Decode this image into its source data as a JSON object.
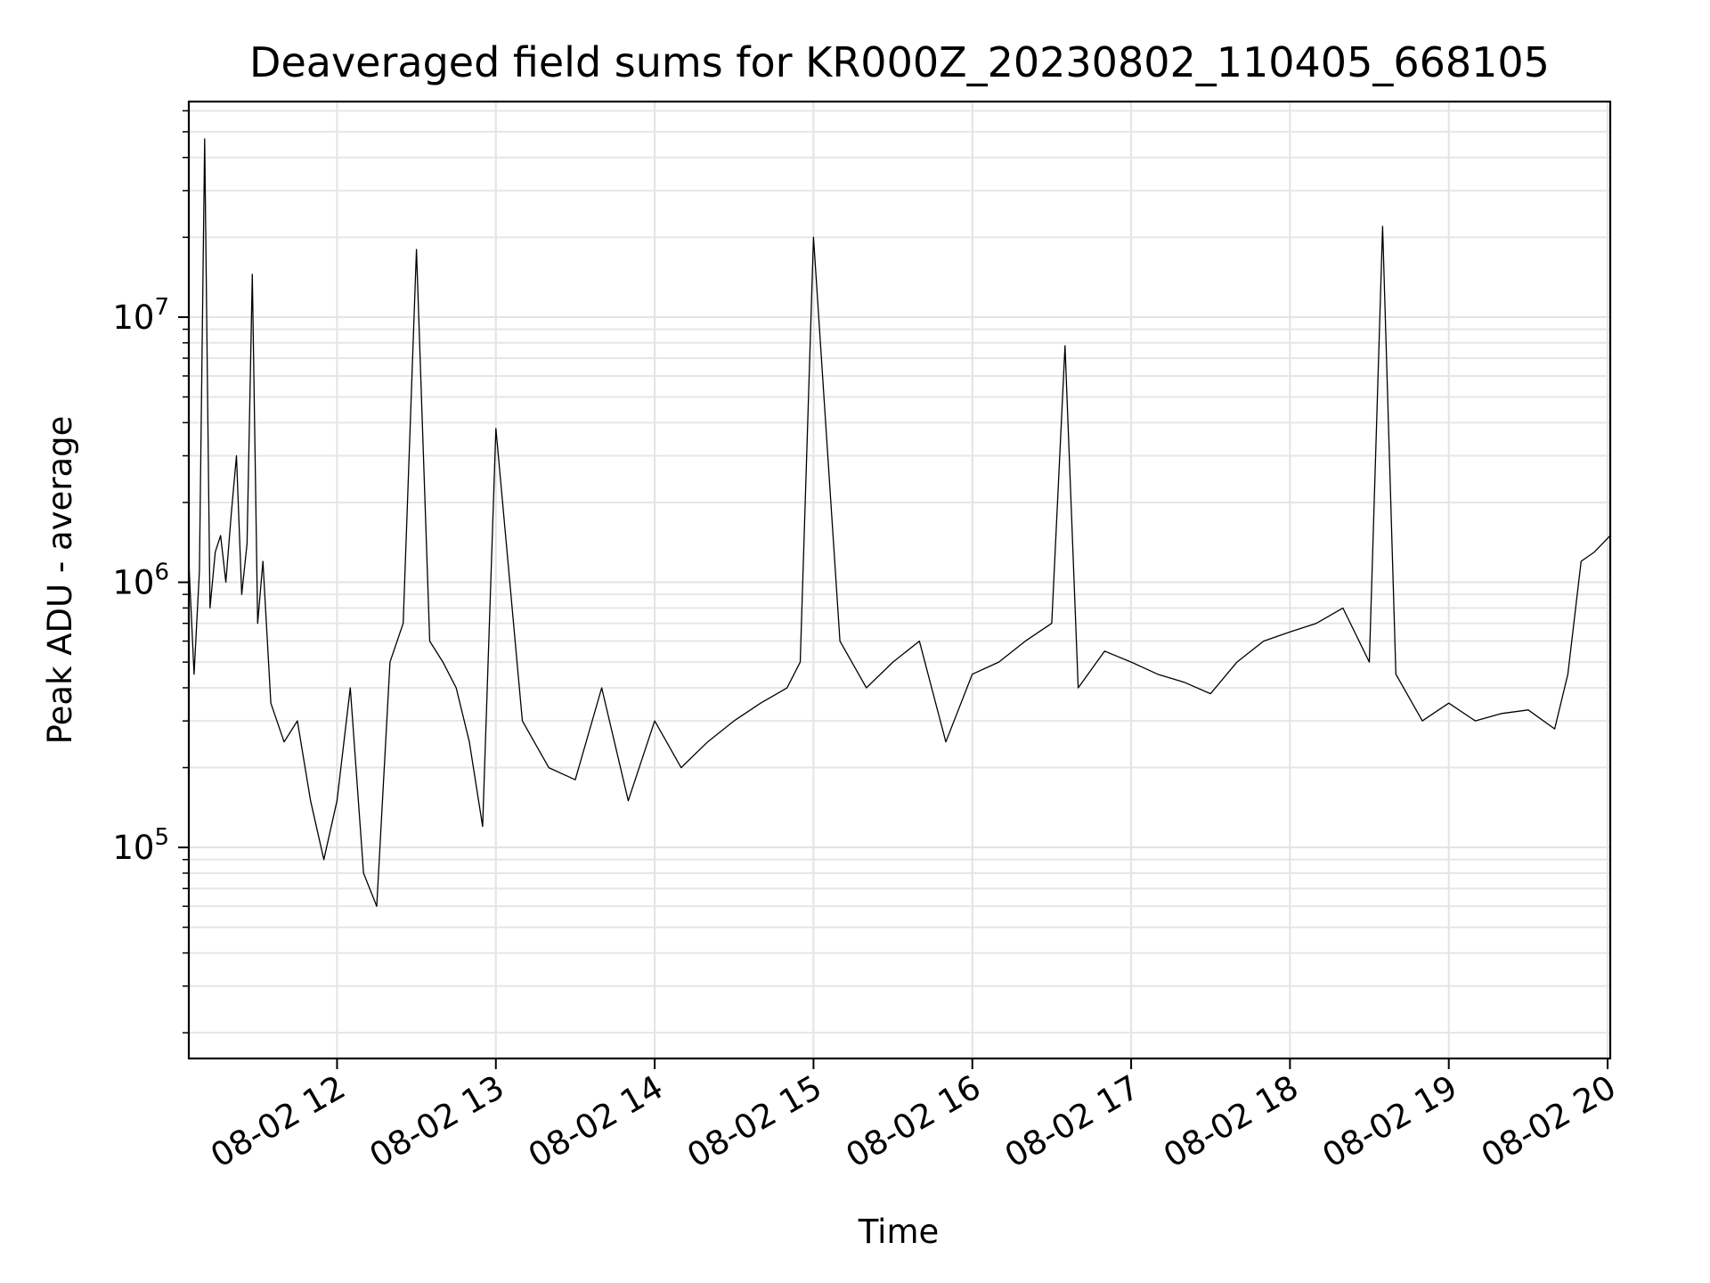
{
  "chart_data": {
    "type": "line",
    "title": "Deaveraged field sums for KR000Z_20230802_110405_668105",
    "xlabel": "Time",
    "ylabel": "Peak ADU - average",
    "x_ticks": [
      "08-02 12",
      "08-02 13",
      "08-02 14",
      "08-02 15",
      "08-02 16",
      "08-02 17",
      "08-02 18",
      "08-02 19",
      "08-02 20"
    ],
    "y_scale": "log",
    "y_ticks": [
      {
        "base": "10",
        "exp": "5",
        "value": 100000
      },
      {
        "base": "10",
        "exp": "6",
        "value": 1000000
      },
      {
        "base": "10",
        "exp": "7",
        "value": 10000000
      }
    ],
    "xlim": [
      "2023-08-02 11:04",
      "2023-08-02 20:01"
    ],
    "ylim": [
      16000,
      65000000
    ],
    "grid": true,
    "line_color": "#000000",
    "series": [
      {
        "x": [
          "2023-08-02 11:04",
          "2023-08-02 11:06",
          "2023-08-02 11:08",
          "2023-08-02 11:10",
          "2023-08-02 11:12",
          "2023-08-02 11:14",
          "2023-08-02 11:16",
          "2023-08-02 11:18",
          "2023-08-02 11:20",
          "2023-08-02 11:22",
          "2023-08-02 11:24",
          "2023-08-02 11:26",
          "2023-08-02 11:28",
          "2023-08-02 11:30",
          "2023-08-02 11:32",
          "2023-08-02 11:35",
          "2023-08-02 11:40",
          "2023-08-02 11:45",
          "2023-08-02 11:50",
          "2023-08-02 11:55",
          "2023-08-02 12:00",
          "2023-08-02 12:05",
          "2023-08-02 12:10",
          "2023-08-02 12:15",
          "2023-08-02 12:20",
          "2023-08-02 12:25",
          "2023-08-02 12:30",
          "2023-08-02 12:35",
          "2023-08-02 12:40",
          "2023-08-02 12:45",
          "2023-08-02 12:50",
          "2023-08-02 12:55",
          "2023-08-02 13:00",
          "2023-08-02 13:10",
          "2023-08-02 13:20",
          "2023-08-02 13:30",
          "2023-08-02 13:40",
          "2023-08-02 13:50",
          "2023-08-02 14:00",
          "2023-08-02 14:10",
          "2023-08-02 14:20",
          "2023-08-02 14:30",
          "2023-08-02 14:40",
          "2023-08-02 14:50",
          "2023-08-02 14:55",
          "2023-08-02 15:00",
          "2023-08-02 15:10",
          "2023-08-02 15:20",
          "2023-08-02 15:30",
          "2023-08-02 15:40",
          "2023-08-02 15:50",
          "2023-08-02 16:00",
          "2023-08-02 16:10",
          "2023-08-02 16:20",
          "2023-08-02 16:30",
          "2023-08-02 16:35",
          "2023-08-02 16:40",
          "2023-08-02 16:50",
          "2023-08-02 17:00",
          "2023-08-02 17:10",
          "2023-08-02 17:20",
          "2023-08-02 17:30",
          "2023-08-02 17:40",
          "2023-08-02 17:50",
          "2023-08-02 18:00",
          "2023-08-02 18:10",
          "2023-08-02 18:20",
          "2023-08-02 18:30",
          "2023-08-02 18:35",
          "2023-08-02 18:40",
          "2023-08-02 18:50",
          "2023-08-02 19:00",
          "2023-08-02 19:10",
          "2023-08-02 19:20",
          "2023-08-02 19:30",
          "2023-08-02 19:40",
          "2023-08-02 19:45",
          "2023-08-02 19:50",
          "2023-08-02 19:55",
          "2023-08-02 20:01"
        ],
        "y": [
          1200000,
          450000,
          1100000,
          47000000,
          800000,
          1300000,
          1500000,
          1000000,
          1800000,
          3000000,
          900000,
          1400000,
          14500000,
          700000,
          1200000,
          350000,
          250000,
          300000,
          150000,
          90000,
          150000,
          400000,
          80000,
          60000,
          500000,
          700000,
          18000000,
          600000,
          500000,
          400000,
          250000,
          120000,
          3800000,
          300000,
          200000,
          180000,
          400000,
          150000,
          300000,
          200000,
          250000,
          300000,
          350000,
          400000,
          500000,
          20000000,
          600000,
          400000,
          500000,
          600000,
          250000,
          450000,
          500000,
          600000,
          700000,
          7800000,
          400000,
          550000,
          500000,
          450000,
          420000,
          380000,
          500000,
          600000,
          650000,
          700000,
          800000,
          500000,
          22000000,
          450000,
          300000,
          350000,
          300000,
          320000,
          330000,
          280000,
          450000,
          1200000,
          1300000,
          1500000
        ]
      }
    ]
  }
}
